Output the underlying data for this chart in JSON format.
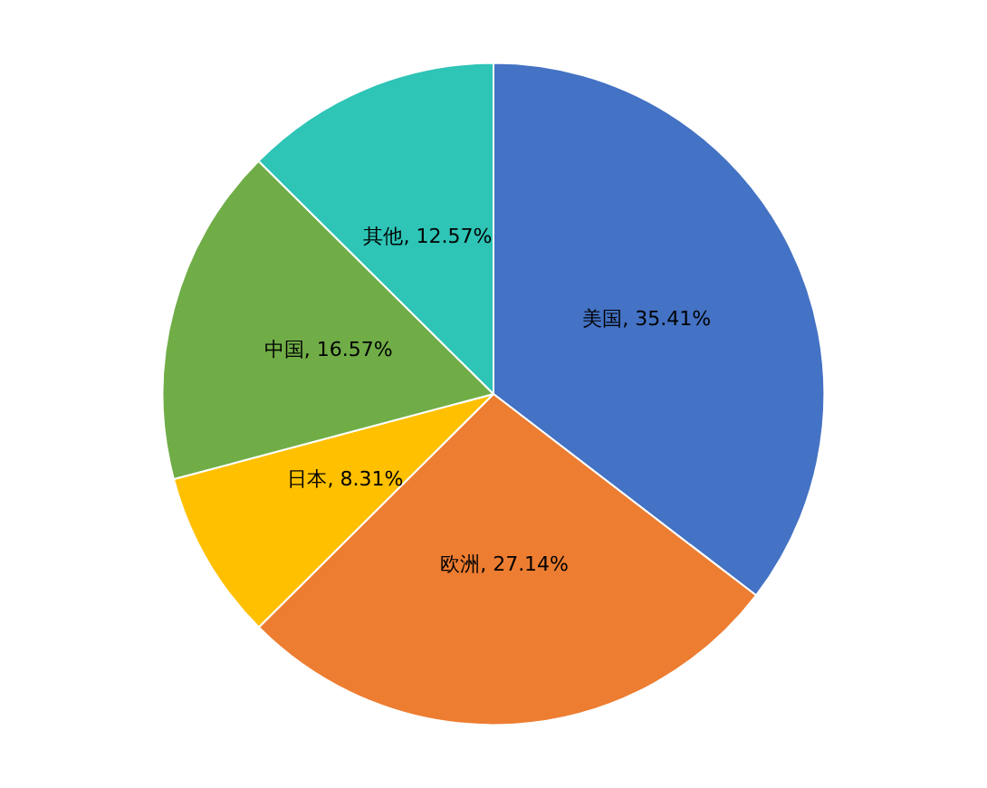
{
  "chart_data": {
    "type": "pie",
    "categories": [
      "美国",
      "欧洲",
      "日本",
      "中国",
      "其他"
    ],
    "values": [
      35.41,
      27.14,
      8.31,
      16.57,
      12.57
    ],
    "colors": [
      "#4472c4",
      "#ed7d31",
      "#ffc000",
      "#70ad47",
      "#2ec4b6"
    ],
    "value_labels": [
      "35.41%",
      "27.14%",
      "8.31%",
      "16.57%",
      "12.57%"
    ],
    "legend": false
  }
}
